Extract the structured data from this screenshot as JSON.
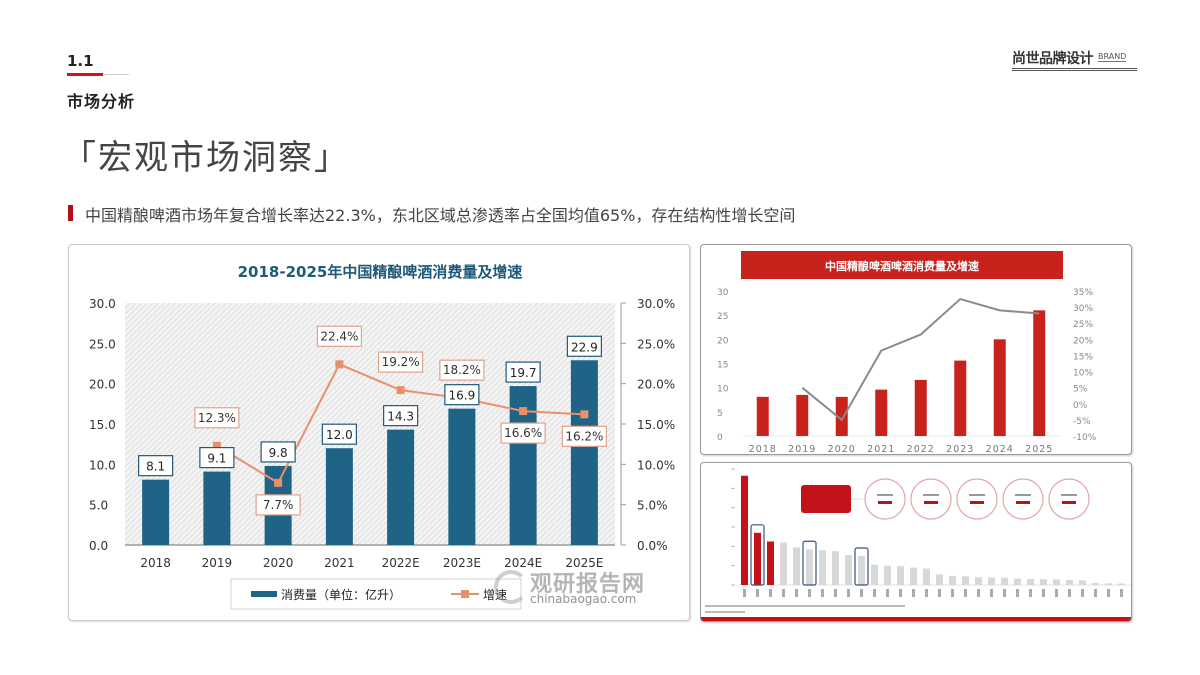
{
  "header": {
    "section_number": "1.1",
    "section_title": "市场分析",
    "brand": "尚世品牌设计",
    "brand_small": "BRAND"
  },
  "title": "「宏观市场洞察」",
  "subtitle": "中国精酿啤酒市场年复合增长率达22.3%，东北区域总渗透率占全国均值65%，存在结构性增长空间",
  "colors": {
    "accent_red": "#d4121a",
    "bar_teal": "#1f6387",
    "line_orange": "#e8906a",
    "tr_bar_red": "#c8221c",
    "tr_line_grey": "#8a8a8a",
    "br_bar_grey": "#d8d8d8"
  },
  "watermark": {
    "cn": "观研报告网",
    "en": "chinabaogao.com"
  },
  "chart_data": [
    {
      "type": "bar",
      "title": "2018-2025年中国精酿啤酒消费量及增速",
      "categories": [
        "2018",
        "2019",
        "2020",
        "2021",
        "2022E",
        "2023E",
        "2024E",
        "2025E"
      ],
      "series": [
        {
          "name": "消费量（单位：亿升）",
          "type": "bar",
          "axis": "left",
          "values": [
            8.1,
            9.1,
            9.8,
            12.0,
            14.3,
            16.9,
            19.7,
            22.9
          ],
          "labels": [
            "8.1",
            "9.1",
            "9.8",
            "12.0",
            "14.3",
            "16.9",
            "19.7",
            "22.9"
          ]
        },
        {
          "name": "增速",
          "type": "line",
          "axis": "right",
          "values": [
            null,
            12.3,
            7.7,
            22.4,
            19.2,
            18.2,
            16.6,
            16.2
          ],
          "labels": [
            "",
            "12.3%",
            "7.7%",
            "22.4%",
            "19.2%",
            "18.2%",
            "16.6%",
            "16.2%"
          ]
        }
      ],
      "y_left": {
        "ticks": [
          "0.0",
          "5.0",
          "10.0",
          "15.0",
          "20.0",
          "25.0",
          "30.0"
        ],
        "ylim": [
          0,
          30
        ]
      },
      "y_right": {
        "ticks": [
          "0.0%",
          "5.0%",
          "10.0%",
          "15.0%",
          "20.0%",
          "25.0%",
          "30.0%"
        ],
        "ylim": [
          0,
          30
        ]
      },
      "legend": [
        "消费量（单位：亿升）",
        "增速"
      ],
      "legend_position": "bottom",
      "grid": false
    },
    {
      "type": "bar",
      "title": "中国精酿啤酒啤酒消费量及增速",
      "categories": [
        "2018",
        "2019",
        "2020",
        "2021",
        "2022",
        "2023",
        "2024",
        "2025"
      ],
      "series": [
        {
          "name": "消费量",
          "type": "bar",
          "axis": "left",
          "values": [
            8.1,
            8.5,
            8.1,
            9.6,
            11.6,
            15.6,
            20.0,
            26.0
          ]
        },
        {
          "name": "增速",
          "type": "line",
          "axis": "right",
          "values": [
            null,
            5.0,
            -5.0,
            16.5,
            21.5,
            32.5,
            29.0,
            28.0
          ]
        }
      ],
      "y_left": {
        "ticks": [
          "0",
          "5",
          "10",
          "15",
          "20",
          "25",
          "30"
        ],
        "ylim": [
          0,
          30
        ]
      },
      "y_right": {
        "ticks": [
          "-10%",
          "-5%",
          "0%",
          "5%",
          "10%",
          "15%",
          "20%",
          "25%",
          "30%",
          "35%"
        ],
        "ylim": [
          -10,
          35
        ]
      },
      "grid": false
    },
    {
      "type": "bar",
      "title": "",
      "note": "regional ranking panel (text not legible at source resolution)",
      "values": [
        1130,
        540,
        450,
        440,
        390,
        370,
        360,
        350,
        310,
        300,
        210,
        200,
        195,
        180,
        170,
        110,
        95,
        90,
        80,
        78,
        75,
        65,
        62,
        60,
        58,
        52,
        48,
        20,
        18,
        16,
        14
      ],
      "highlight_red": [
        0,
        1,
        2
      ],
      "outlined": [
        1,
        5,
        9
      ],
      "ylim": [
        0,
        1200
      ]
    }
  ],
  "br_panel": {
    "circles": 5,
    "red_box": true
  }
}
